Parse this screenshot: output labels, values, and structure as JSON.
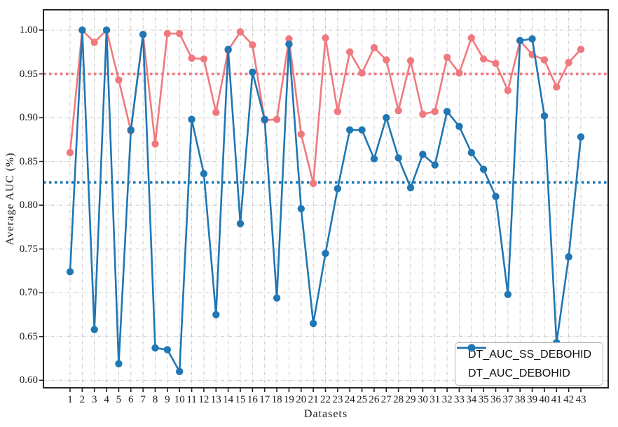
{
  "chart_data": {
    "type": "line",
    "title": "",
    "xlabel": "Datasets",
    "ylabel": "Average AUC (%)",
    "x": [
      1,
      2,
      3,
      4,
      5,
      6,
      7,
      8,
      9,
      10,
      11,
      12,
      13,
      14,
      15,
      16,
      17,
      18,
      19,
      20,
      21,
      22,
      23,
      24,
      25,
      26,
      27,
      28,
      29,
      30,
      31,
      32,
      33,
      34,
      35,
      36,
      37,
      38,
      39,
      40,
      41,
      42,
      43
    ],
    "series": [
      {
        "name": "DT_AUC_SS_DEBOHID",
        "color": "#f0797f",
        "marker": "circle",
        "values": [
          0.86,
          1.0,
          0.986,
          1.0,
          0.943,
          0.885,
          0.995,
          0.87,
          0.996,
          0.996,
          0.968,
          0.967,
          0.906,
          0.977,
          0.998,
          0.983,
          0.897,
          0.898,
          0.99,
          0.881,
          0.825,
          0.991,
          0.907,
          0.975,
          0.951,
          0.98,
          0.966,
          0.908,
          0.965,
          0.904,
          0.907,
          0.969,
          0.951,
          0.991,
          0.967,
          0.962,
          0.931,
          0.988,
          0.972,
          0.966,
          0.935,
          0.963,
          0.978
        ]
      },
      {
        "name": "DT_AUC_DEBOHID",
        "color": "#1f77b4",
        "marker": "circle",
        "values": [
          0.724,
          1.0,
          0.658,
          1.0,
          0.619,
          0.886,
          0.995,
          0.637,
          0.635,
          0.61,
          0.898,
          0.836,
          0.675,
          0.978,
          0.779,
          0.952,
          0.898,
          0.694,
          0.984,
          0.796,
          0.665,
          0.745,
          0.819,
          0.886,
          0.886,
          0.853,
          0.9,
          0.854,
          0.82,
          0.858,
          0.846,
          0.907,
          0.89,
          0.86,
          0.841,
          0.81,
          0.698,
          0.988,
          0.99,
          0.902,
          0.643,
          0.741,
          0.878
        ]
      }
    ],
    "mean_lines": [
      {
        "series": "DT_AUC_SS_DEBOHID",
        "value": 0.95,
        "color": "#f0797f",
        "style": "dotted"
      },
      {
        "series": "DT_AUC_DEBOHID",
        "value": 0.826,
        "color": "#1f77b4",
        "style": "dotted"
      }
    ],
    "yticks": [
      "0.60",
      "0.65",
      "0.70",
      "0.75",
      "0.80",
      "0.85",
      "0.90",
      "0.95",
      "1.00"
    ],
    "ylim": [
      0.592,
      1.023
    ],
    "grid": "dash-dot vertical and horizontal",
    "legend_position": "lower right",
    "colors": {
      "grid": "#c8c8c8",
      "spine": "#262626",
      "text": "#1a1a1a"
    }
  },
  "legend": {
    "entries": [
      "DT_AUC_SS_DEBOHID",
      "DT_AUC_DEBOHID"
    ]
  }
}
